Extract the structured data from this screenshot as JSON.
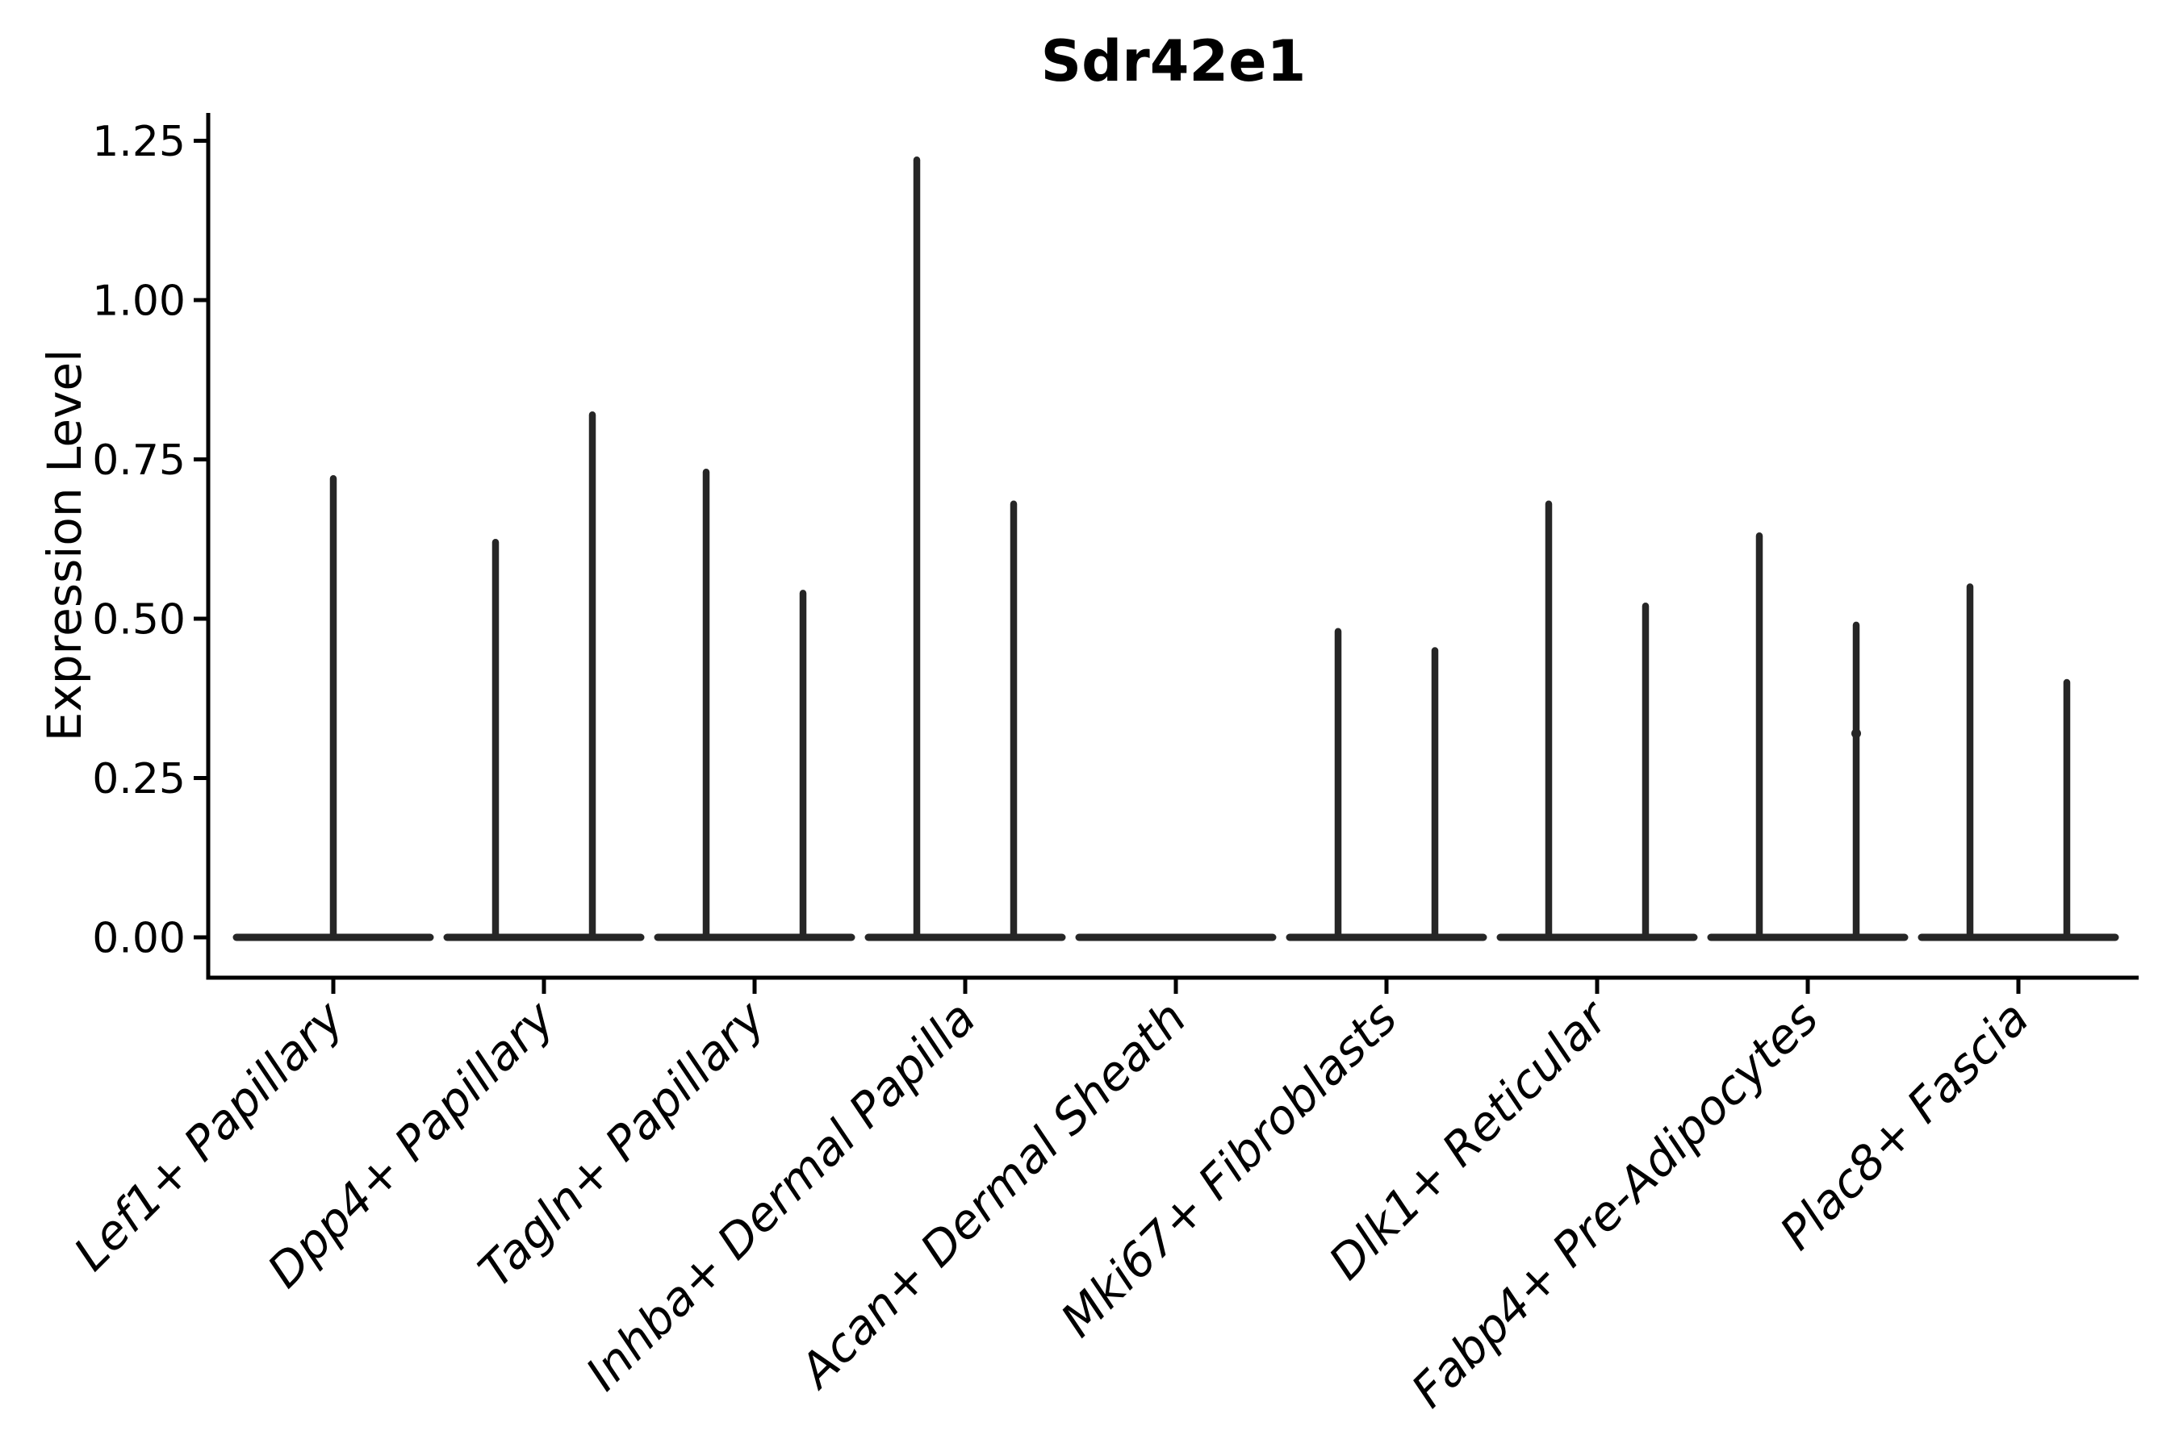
{
  "chart_data": {
    "type": "violin",
    "title": "Sdr42e1",
    "xlabel": "",
    "ylabel": "Expression Level",
    "grid": false,
    "legend": null,
    "ylim": [
      -0.06,
      1.29
    ],
    "yticks": [
      0.0,
      0.25,
      0.5,
      0.75,
      1.0,
      1.25
    ],
    "ytick_labels": [
      "0.00",
      "0.25",
      "0.50",
      "0.75",
      "1.00",
      "1.25"
    ],
    "categories": [
      "Lef1+ Papillary",
      "Dpp4+ Papillary",
      "Tagln+ Papillary",
      "Inhba+ Dermal Papilla",
      "Acan+ Dermal Sheath",
      "Mki67+ Fibroblasts",
      "Dlk1+ Reticular",
      "Fabp4+ Pre-Adipocytes",
      "Plac8+ Fascia"
    ],
    "violins": [
      {
        "category": "Lef1+ Papillary",
        "baseline": 0,
        "spikes": [
          {
            "offset": 0,
            "max": 0.72
          }
        ]
      },
      {
        "category": "Dpp4+ Papillary",
        "baseline": 0,
        "spikes": [
          {
            "offset": -0.25,
            "max": 0.62
          },
          {
            "offset": 0.25,
            "max": 0.82
          }
        ]
      },
      {
        "category": "Tagln+ Papillary",
        "baseline": 0,
        "spikes": [
          {
            "offset": -0.25,
            "max": 0.73
          },
          {
            "offset": 0.25,
            "max": 0.54
          }
        ]
      },
      {
        "category": "Inhba+ Dermal Papilla",
        "baseline": 0,
        "spikes": [
          {
            "offset": -0.25,
            "max": 1.22
          },
          {
            "offset": 0.25,
            "max": 0.68
          }
        ]
      },
      {
        "category": "Acan+ Dermal Sheath",
        "baseline": 0,
        "spikes": []
      },
      {
        "category": "Mki67+ Fibroblasts",
        "baseline": 0,
        "spikes": [
          {
            "offset": -0.25,
            "max": 0.48
          },
          {
            "offset": 0.25,
            "max": 0.45
          }
        ]
      },
      {
        "category": "Dlk1+ Reticular",
        "baseline": 0,
        "spikes": [
          {
            "offset": -0.25,
            "max": 0.68
          },
          {
            "offset": 0.25,
            "max": 0.52
          }
        ]
      },
      {
        "category": "Fabp4+ Pre-Adipocytes",
        "baseline": 0,
        "spikes": [
          {
            "offset": -0.25,
            "max": 0.63
          },
          {
            "offset": 0.25,
            "max": 0.49,
            "point": 0.32
          }
        ]
      },
      {
        "category": "Plac8+ Fascia",
        "baseline": 0,
        "spikes": [
          {
            "offset": -0.25,
            "max": 0.55
          },
          {
            "offset": 0.25,
            "max": 0.4
          }
        ]
      }
    ],
    "colors": {
      "violin": "#262626",
      "axis": "#000000",
      "text": "#000000",
      "background": "#ffffff"
    }
  }
}
